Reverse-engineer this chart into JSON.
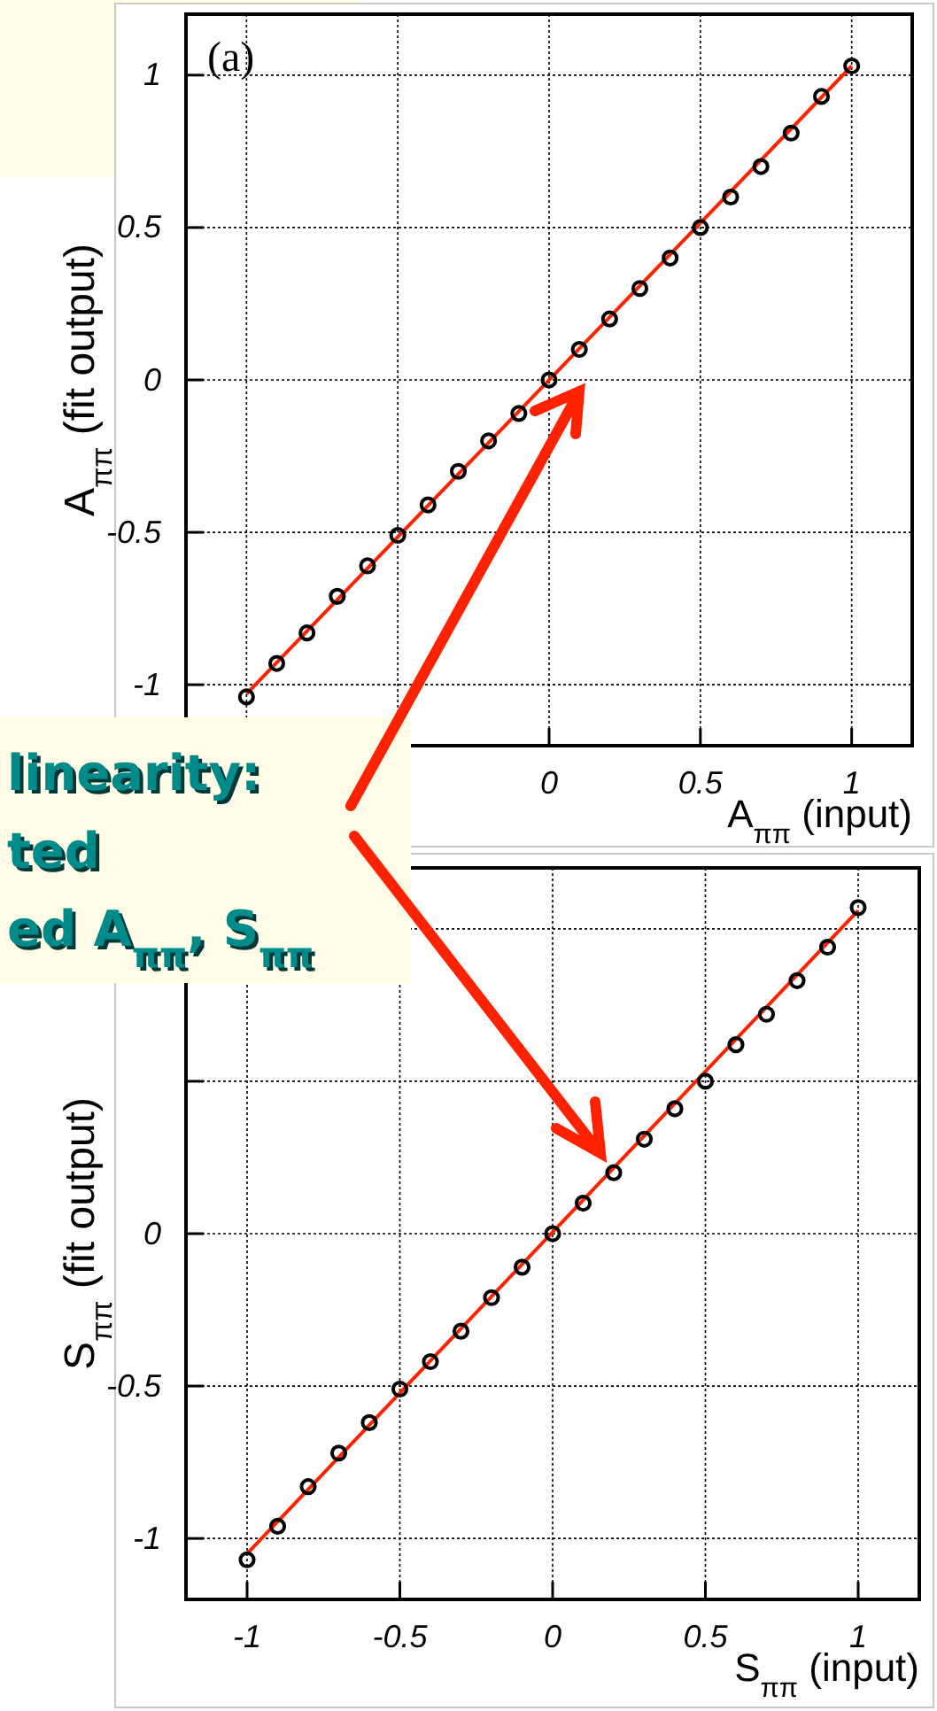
{
  "chart_data": [
    {
      "type": "scatter",
      "xlabel": "A$_{ππ}$ (input)",
      "ylabel": "A$_{ππ}$ (fit output)",
      "xlim": [
        -1.2,
        1.2
      ],
      "ylim": [
        -1.2,
        1.2
      ],
      "xticks": [
        {
          "value": -1,
          "label": null
        },
        {
          "value": -0.5,
          "label": null
        },
        0,
        0.5,
        1
      ],
      "yticks": [
        -1,
        -0.5,
        0,
        0.5,
        1
      ],
      "grid": true,
      "annotations": [
        "(a)",
        "linearity:",
        "ted",
        "ed A$_{ππ}$, S$_{ππ}$"
      ],
      "series": [
        {
          "color": "#000000",
          "marker": "circle",
          "x": [
            -1,
            -0.9,
            -0.8,
            -0.7,
            -0.6,
            -0.5,
            -0.4,
            -0.3,
            -0.2,
            -0.1,
            0,
            0.1,
            0.2,
            0.3,
            0.4,
            0.5,
            0.6,
            0.7,
            0.8,
            0.9,
            1
          ],
          "values": [
            -1.04,
            -0.93,
            -0.83,
            -0.71,
            -0.61,
            -0.51,
            -0.41,
            -0.3,
            -0.2,
            -0.11,
            0,
            0.1,
            0.2,
            0.3,
            0.4,
            0.5,
            0.6,
            0.7,
            0.81,
            0.93,
            1.03
          ]
        },
        {
          "type": "line",
          "color": "#ff2200",
          "x": [
            -1,
            1
          ],
          "values": [
            -1.03,
            1.03
          ]
        }
      ]
    },
    {
      "type": "scatter",
      "xlabel": "S$_{ππ}$ (input)",
      "ylabel": "S$_{ππ}$ (fit output)",
      "xlim": [
        -1.2,
        1.2
      ],
      "ylim": [
        -1.2,
        1.2
      ],
      "xticks": [
        -1,
        -0.5,
        0,
        0.5,
        1
      ],
      "yticks": [
        -1,
        -0.5,
        0,
        {
          "value": 0.5,
          "label": null
        },
        {
          "value": 1,
          "label": null
        }
      ],
      "grid": true,
      "series": [
        {
          "color": "#000000",
          "marker": "circle",
          "x": [
            -1,
            -0.9,
            -0.8,
            -0.7,
            -0.6,
            -0.5,
            -0.4,
            -0.3,
            -0.2,
            -0.1,
            0,
            0.1,
            0.2,
            0.3,
            0.4,
            0.5,
            0.6,
            0.7,
            0.8,
            0.9,
            1
          ],
          "values": [
            -1.07,
            -0.96,
            -0.83,
            -0.72,
            -0.62,
            -0.51,
            -0.42,
            -0.32,
            -0.21,
            -0.11,
            0,
            0.1,
            0.2,
            0.31,
            0.41,
            0.5,
            0.62,
            0.72,
            0.83,
            0.94,
            1.07
          ]
        },
        {
          "type": "line",
          "color": "#ff2200",
          "x": [
            -1,
            1
          ],
          "values": [
            -1.05,
            1.06
          ]
        }
      ]
    }
  ]
}
